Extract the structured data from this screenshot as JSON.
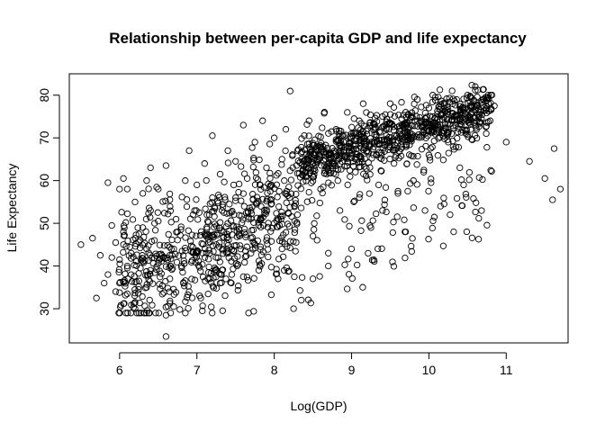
{
  "chart_data": {
    "type": "scatter",
    "title": "Relationship between per-capita GDP and life expectancy",
    "xlabel": "Log(GDP)",
    "ylabel": "Life Expectancy",
    "xlim": [
      5.35,
      11.8
    ],
    "ylim": [
      22,
      85
    ],
    "xticks": [
      6,
      7,
      8,
      9,
      10,
      11
    ],
    "yticks": [
      30,
      40,
      50,
      60,
      70,
      80
    ],
    "grid": false,
    "legend": "none",
    "marker": "open-circle",
    "color": "#000000",
    "series": [
      {
        "generator": "cloud",
        "notes": "",
        "points": [
          [
            5.5,
            45
          ],
          [
            5.65,
            46.5
          ],
          [
            5.7,
            32.5
          ],
          [
            5.75,
            42.5
          ],
          [
            5.8,
            36
          ],
          [
            5.85,
            38
          ],
          [
            5.85,
            59.5
          ],
          [
            5.9,
            49.5
          ],
          [
            5.9,
            42
          ],
          [
            5.95,
            45.5
          ],
          [
            5.95,
            34
          ],
          [
            6.0,
            58
          ],
          [
            6.0,
            41.5
          ],
          [
            6.0,
            36
          ],
          [
            6.05,
            60.5
          ],
          [
            6.05,
            48
          ],
          [
            6.05,
            45
          ],
          [
            6.1,
            58
          ],
          [
            6.1,
            33.5
          ],
          [
            6.1,
            40
          ],
          [
            6.15,
            43
          ],
          [
            6.15,
            38
          ],
          [
            6.2,
            55
          ],
          [
            6.2,
            31.5
          ],
          [
            6.2,
            30
          ],
          [
            6.25,
            47.5
          ],
          [
            6.25,
            36.5
          ],
          [
            6.3,
            57
          ],
          [
            6.3,
            49
          ],
          [
            6.3,
            41
          ],
          [
            6.35,
            60
          ],
          [
            6.35,
            44
          ],
          [
            6.35,
            35
          ],
          [
            6.4,
            63
          ],
          [
            6.4,
            53
          ],
          [
            6.4,
            39
          ],
          [
            6.45,
            46
          ],
          [
            6.5,
            58
          ],
          [
            6.5,
            50.5
          ],
          [
            6.55,
            42.5
          ],
          [
            6.6,
            23.5
          ],
          [
            6.6,
            28.5
          ],
          [
            6.6,
            63.5
          ],
          [
            6.65,
            55.5
          ],
          [
            6.65,
            37
          ],
          [
            6.7,
            44
          ],
          [
            6.7,
            30.5
          ],
          [
            6.75,
            48
          ],
          [
            6.8,
            40
          ],
          [
            6.85,
            60
          ],
          [
            6.9,
            67
          ],
          [
            6.9,
            34
          ],
          [
            6.95,
            52
          ],
          [
            7.0,
            43
          ],
          [
            7.0,
            59
          ],
          [
            7.05,
            32.5
          ],
          [
            7.1,
            64
          ],
          [
            7.1,
            47.5
          ],
          [
            7.15,
            38.5
          ],
          [
            7.2,
            56
          ],
          [
            7.2,
            70.5
          ],
          [
            7.25,
            45
          ],
          [
            7.3,
            61.5
          ],
          [
            7.3,
            36
          ],
          [
            7.35,
            52.5
          ],
          [
            7.4,
            67
          ],
          [
            7.4,
            43
          ],
          [
            7.45,
            38
          ],
          [
            7.5,
            64.5
          ],
          [
            7.5,
            56
          ],
          [
            7.55,
            47
          ],
          [
            7.6,
            73
          ],
          [
            7.6,
            37.5
          ],
          [
            7.65,
            60.5
          ],
          [
            7.7,
            53
          ],
          [
            7.7,
            43
          ],
          [
            7.75,
            69
          ],
          [
            7.8,
            49.5
          ],
          [
            7.8,
            39
          ],
          [
            7.85,
            74
          ],
          [
            7.9,
            63
          ],
          [
            7.9,
            46
          ],
          [
            7.95,
            57.5
          ],
          [
            8.0,
            70
          ],
          [
            8.0,
            50
          ],
          [
            8.05,
            37
          ],
          [
            8.1,
            65
          ],
          [
            8.1,
            44
          ],
          [
            8.15,
            72
          ],
          [
            8.2,
            56
          ],
          [
            8.25,
            30
          ],
          [
            8.3,
            67
          ],
          [
            8.3,
            52
          ],
          [
            8.35,
            32
          ],
          [
            8.4,
            62
          ],
          [
            8.45,
            74
          ],
          [
            8.5,
            47
          ],
          [
            8.5,
            37
          ],
          [
            8.55,
            68
          ],
          [
            8.6,
            58
          ],
          [
            8.65,
            76
          ],
          [
            8.7,
            43
          ],
          [
            8.7,
            40
          ],
          [
            8.75,
            64
          ],
          [
            8.8,
            72
          ],
          [
            8.85,
            53
          ],
          [
            8.9,
            69
          ],
          [
            8.95,
            59
          ],
          [
            9.0,
            71
          ],
          [
            9.0,
            44
          ],
          [
            9.05,
            62
          ],
          [
            9.1,
            74
          ],
          [
            9.1,
            56
          ],
          [
            9.15,
            78
          ],
          [
            9.2,
            67
          ],
          [
            9.25,
            49
          ],
          [
            9.3,
            72
          ],
          [
            9.35,
            59
          ],
          [
            9.4,
            75
          ],
          [
            9.4,
            53
          ],
          [
            9.45,
            69
          ],
          [
            9.5,
            78
          ],
          [
            9.55,
            64
          ],
          [
            9.6,
            57
          ],
          [
            9.65,
            73
          ],
          [
            9.7,
            48
          ],
          [
            9.7,
            76
          ],
          [
            9.75,
            70
          ],
          [
            9.8,
            60
          ],
          [
            9.85,
            79
          ],
          [
            9.9,
            74
          ],
          [
            9.95,
            53
          ],
          [
            10.0,
            77
          ],
          [
            10.0,
            66
          ],
          [
            10.05,
            80
          ],
          [
            10.1,
            72
          ],
          [
            10.15,
            54
          ],
          [
            10.2,
            78
          ],
          [
            10.25,
            69
          ],
          [
            10.3,
            81
          ],
          [
            10.35,
            75
          ],
          [
            10.4,
            63
          ],
          [
            10.45,
            59
          ],
          [
            10.5,
            80
          ],
          [
            10.55,
            77
          ],
          [
            10.6,
            82
          ],
          [
            10.65,
            76
          ],
          [
            10.7,
            79
          ],
          [
            10.8,
            80
          ],
          [
            11.0,
            69
          ],
          [
            11.3,
            64.5
          ],
          [
            11.5,
            60.5
          ],
          [
            11.6,
            55.5
          ],
          [
            11.62,
            67.5
          ],
          [
            11.7,
            58
          ]
        ]
      }
    ]
  }
}
